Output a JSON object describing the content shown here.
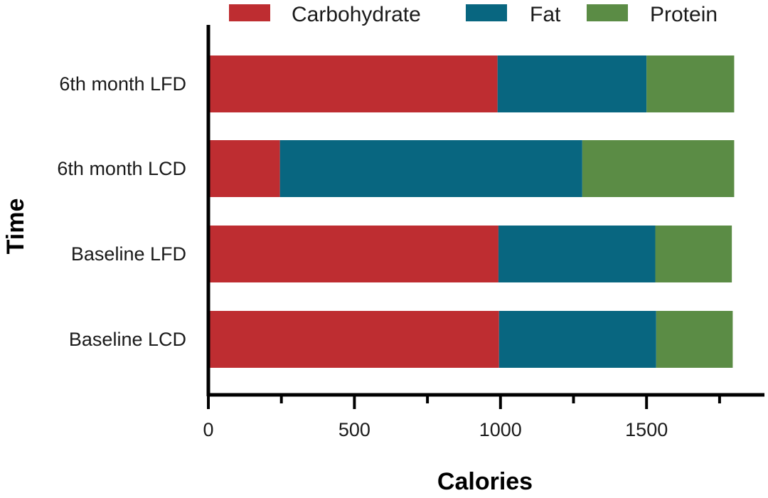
{
  "chart_data": {
    "type": "bar",
    "orientation": "horizontal",
    "stacked": true,
    "categories": [
      "6th month LFD",
      "6th month LCD",
      "Baseline LFD",
      "Baseline LCD"
    ],
    "series": [
      {
        "name": "Carbohydrate",
        "color": "#be2d31",
        "values": [
          990,
          245,
          993,
          995
        ]
      },
      {
        "name": "Fat",
        "color": "#086680",
        "values": [
          510,
          1035,
          537,
          538
        ]
      },
      {
        "name": "Protein",
        "color": "#5b8c45",
        "values": [
          300,
          520,
          262,
          262
        ]
      }
    ],
    "xlabel": "Calories",
    "ylabel": "Time",
    "xlim": [
      0,
      1900
    ],
    "xticks": [
      0,
      500,
      1000,
      1500
    ],
    "xticks_minor": [
      250,
      750,
      1250,
      1750
    ],
    "grid": false,
    "legend_position": "top"
  }
}
